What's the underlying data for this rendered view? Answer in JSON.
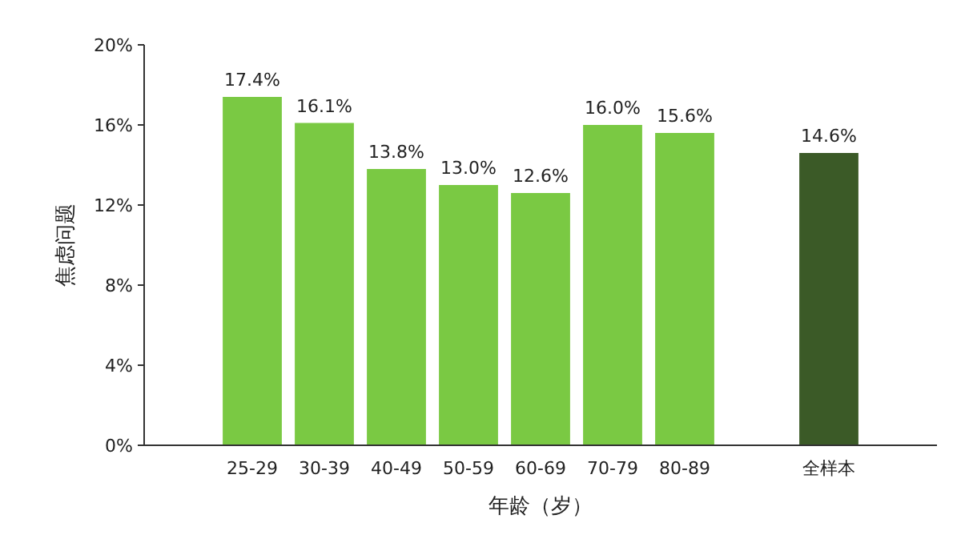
{
  "chart_data": {
    "type": "bar",
    "xlabel": "年龄（岁）",
    "ylabel": "焦虑问题",
    "categories": [
      "25-29",
      "30-39",
      "40-49",
      "50-59",
      "60-69",
      "70-79",
      "80-89",
      null,
      "全样本"
    ],
    "values": [
      17.4,
      16.1,
      13.8,
      13.0,
      12.6,
      16.0,
      15.6,
      null,
      14.6
    ],
    "value_labels": [
      "17.4%",
      "16.1%",
      "13.8%",
      "13.0%",
      "12.6%",
      "16.0%",
      "15.6%",
      null,
      "14.6%"
    ],
    "colors": [
      "#7ac943",
      "#7ac943",
      "#7ac943",
      "#7ac943",
      "#7ac943",
      "#7ac943",
      "#7ac943",
      null,
      "#3b5a27"
    ],
    "ylim": [
      0,
      20
    ],
    "yticks": [
      {
        "value": 0,
        "label": "0%"
      },
      {
        "value": 4,
        "label": "4%"
      },
      {
        "value": 8,
        "label": "8%"
      },
      {
        "value": 12,
        "label": "12%"
      },
      {
        "value": 16,
        "label": "16%"
      },
      {
        "value": 20,
        "label": "20%"
      }
    ],
    "grid": false
  }
}
